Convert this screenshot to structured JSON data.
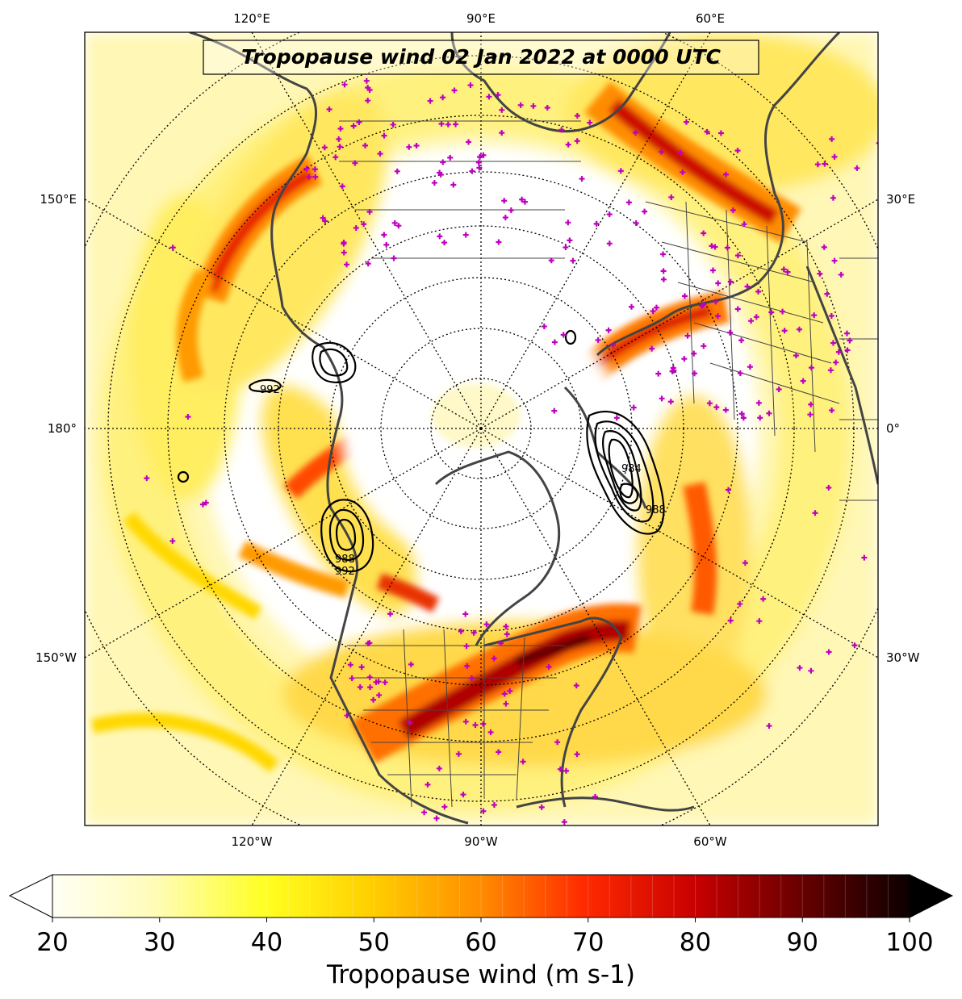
{
  "title": "Tropopause wind 02 Jan 2022 at 0000 UTC",
  "map": {
    "projection": "north-polar-stereographic",
    "center_longitude": "90°W",
    "lon_labels": {
      "top": [
        "120°E",
        "90°E",
        "60°E"
      ],
      "bottom": [
        "120°W",
        "90°W",
        "60°W"
      ],
      "left": [
        "150°E",
        "180°",
        "150°W"
      ],
      "right": [
        "30°E",
        "0°",
        "30°W"
      ]
    },
    "graticule": "dotted",
    "coastline_color": "#444444",
    "station_marker_color": "#c000c0",
    "station_marker": "+",
    "mslp_contours": {
      "color": "#000000",
      "labels": [
        "992",
        "988",
        "992",
        "988",
        "992",
        "984",
        "988"
      ]
    },
    "jet_features": [
      "pacific-jet-west",
      "north-atlantic-jet",
      "north-america-jet",
      "europe-jet",
      "asia-jet"
    ]
  },
  "colorbar": {
    "label": "Tropopause wind (m s-1)",
    "min": 20,
    "max": 100,
    "ticks": [
      "20",
      "30",
      "40",
      "50",
      "60",
      "70",
      "80",
      "90",
      "100"
    ],
    "extend": "both",
    "colors": [
      "#ffffff",
      "#fffbd0",
      "#fff79a",
      "#ffee55",
      "#ffd700",
      "#ffaa00",
      "#ff7a00",
      "#ff3a00",
      "#f00000",
      "#c40000",
      "#8a0000",
      "#560000",
      "#240000",
      "#000000"
    ]
  }
}
